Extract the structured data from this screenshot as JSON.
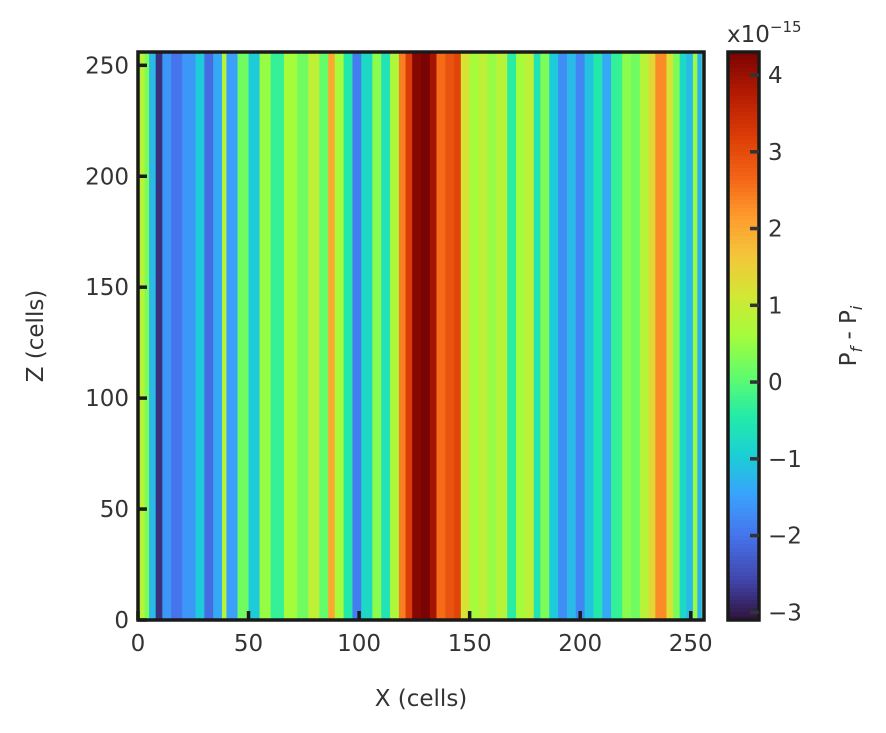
{
  "chart_data": {
    "type": "heatmap",
    "xlabel": "X (cells)",
    "ylabel": "Z (cells)",
    "xlim": [
      0,
      256
    ],
    "ylim": [
      0,
      256
    ],
    "xticks": [
      0,
      50,
      100,
      150,
      200,
      250
    ],
    "yticks": [
      0,
      50,
      100,
      150,
      200,
      250
    ],
    "colorbar": {
      "label": "P_f - P_i",
      "label_main": "P",
      "label_sub1": "f",
      "label_mid": " - P",
      "label_sub2": "i",
      "range": [
        -3.1,
        4.3
      ],
      "ticks": [
        -3,
        -2,
        -1,
        0,
        1,
        2,
        3,
        4
      ],
      "tick_labels": [
        "−3",
        "−2",
        "−1",
        "0",
        "1",
        "2",
        "3",
        "4"
      ],
      "offset_base": "x10",
      "offset_exponent": "−15",
      "colormap": "turbo"
    },
    "description": "Values are constant along Z; each column (by X cell index) has a single value in units of 1e-15.",
    "column_values": [
      [
        0,
        0.8
      ],
      [
        3,
        0.3
      ],
      [
        5,
        -1.2
      ],
      [
        8,
        -2.8
      ],
      [
        11,
        -1.6
      ],
      [
        15,
        -2.0
      ],
      [
        20,
        -1.6
      ],
      [
        26,
        -1.0
      ],
      [
        30,
        -2.1
      ],
      [
        34,
        -1.4
      ],
      [
        38,
        0.8
      ],
      [
        40,
        -1.5
      ],
      [
        45,
        0.2
      ],
      [
        50,
        -1.0
      ],
      [
        55,
        0.5
      ],
      [
        60,
        -0.3
      ],
      [
        66,
        0.6
      ],
      [
        72,
        0.2
      ],
      [
        77,
        0.9
      ],
      [
        82,
        0.1
      ],
      [
        86,
        2.0
      ],
      [
        89,
        0.6
      ],
      [
        93,
        -0.5
      ],
      [
        97,
        -1.9
      ],
      [
        101,
        -0.8
      ],
      [
        106,
        0.4
      ],
      [
        110,
        -0.6
      ],
      [
        114,
        0.7
      ],
      [
        118,
        2.4
      ],
      [
        121,
        3.2
      ],
      [
        124,
        4.2
      ],
      [
        128,
        4.3
      ],
      [
        132,
        3.9
      ],
      [
        135,
        2.6
      ],
      [
        139,
        2.9
      ],
      [
        143,
        3.1
      ],
      [
        146,
        1.2
      ],
      [
        150,
        0.6
      ],
      [
        154,
        0.9
      ],
      [
        158,
        0.5
      ],
      [
        162,
        0.8
      ],
      [
        167,
        -0.4
      ],
      [
        171,
        0.6
      ],
      [
        175,
        0.9
      ],
      [
        179,
        -0.6
      ],
      [
        182,
        0.3
      ],
      [
        186,
        -1.0
      ],
      [
        190,
        -1.7
      ],
      [
        194,
        -1.2
      ],
      [
        198,
        -1.8
      ],
      [
        202,
        -1.1
      ],
      [
        206,
        -0.5
      ],
      [
        210,
        -1.4
      ],
      [
        214,
        -0.3
      ],
      [
        219,
        0.4
      ],
      [
        223,
        0.2
      ],
      [
        227,
        0.8
      ],
      [
        231,
        1.4
      ],
      [
        234,
        2.3
      ],
      [
        239,
        1.2
      ],
      [
        242,
        0.3
      ],
      [
        245,
        -0.8
      ],
      [
        248,
        -1.2
      ],
      [
        251,
        0.5
      ],
      [
        253,
        -1.3
      ],
      [
        255,
        0.2
      ]
    ]
  }
}
